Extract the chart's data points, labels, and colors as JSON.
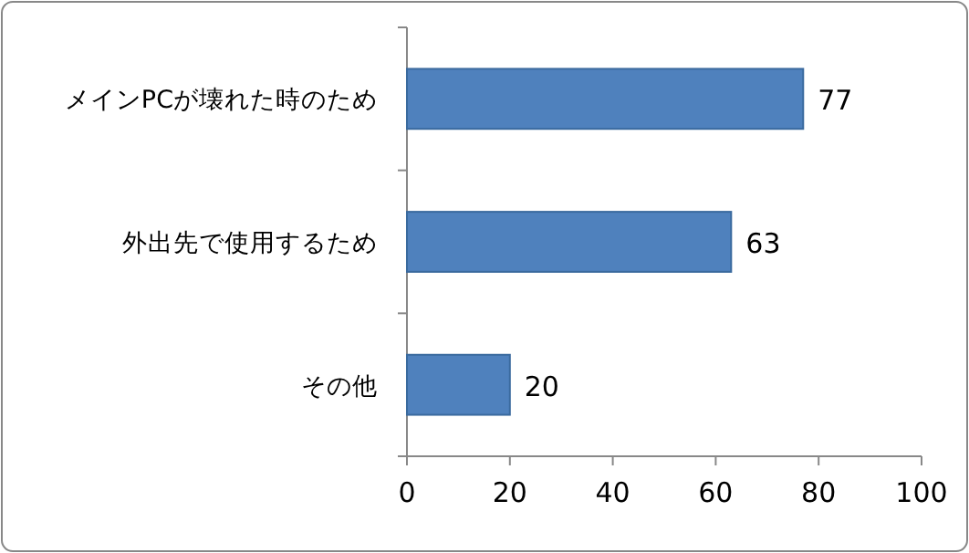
{
  "chart_data": {
    "type": "bar",
    "orientation": "horizontal",
    "categories": [
      "メインPCが壊れた時のため",
      "外出先で使用するため",
      "その他"
    ],
    "values": [
      77,
      63,
      20
    ],
    "color": "#4f81bd",
    "xlim": [
      0,
      100
    ],
    "xticks": [
      0,
      20,
      40,
      60,
      80,
      100
    ],
    "data_labels": true
  }
}
